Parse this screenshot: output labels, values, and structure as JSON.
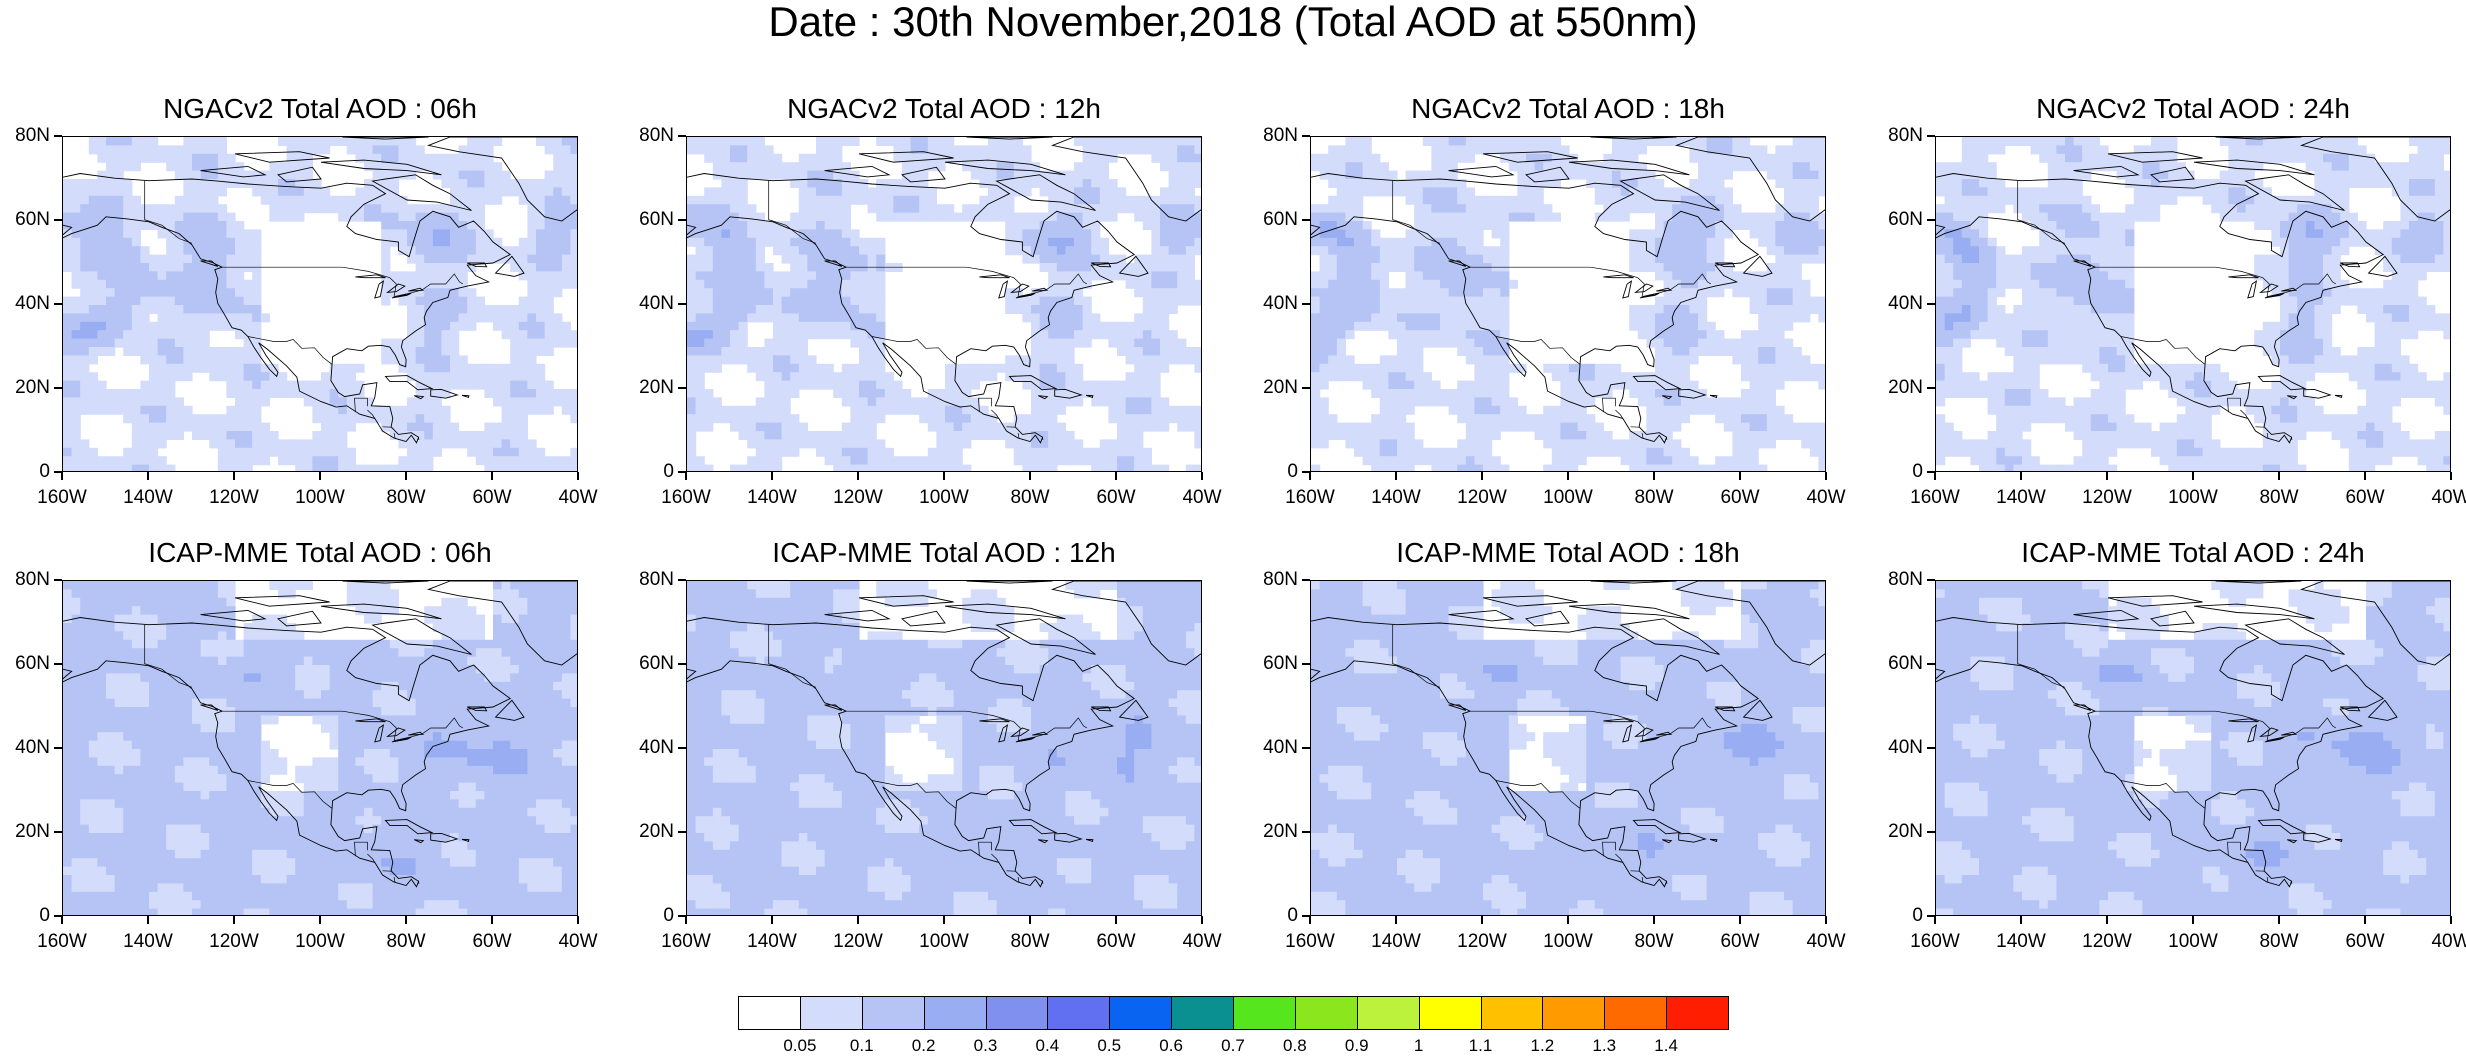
{
  "title": "Date : 30th November,2018 (Total AOD at 550nm)",
  "panels": [
    {
      "title": "NGACv2 Total AOD : 06h",
      "model": "NGACv2",
      "hour": "06h"
    },
    {
      "title": "NGACv2 Total AOD : 12h",
      "model": "NGACv2",
      "hour": "12h"
    },
    {
      "title": "NGACv2 Total AOD : 18h",
      "model": "NGACv2",
      "hour": "18h"
    },
    {
      "title": "NGACv2 Total AOD : 24h",
      "model": "NGACv2",
      "hour": "24h"
    },
    {
      "title": "ICAP-MME Total AOD : 06h",
      "model": "ICAP-MME",
      "hour": "06h"
    },
    {
      "title": "ICAP-MME Total AOD : 12h",
      "model": "ICAP-MME",
      "hour": "12h"
    },
    {
      "title": "ICAP-MME Total AOD : 18h",
      "model": "ICAP-MME",
      "hour": "18h"
    },
    {
      "title": "ICAP-MME Total AOD : 24h",
      "model": "ICAP-MME",
      "hour": "24h"
    }
  ],
  "lat_ticks": [
    "80N",
    "60N",
    "40N",
    "20N",
    "0"
  ],
  "lon_ticks": [
    "160W",
    "140W",
    "120W",
    "100W",
    "80W",
    "60W",
    "40W"
  ],
  "colorbar": {
    "levels": [
      "0.05",
      "0.1",
      "0.2",
      "0.3",
      "0.4",
      "0.5",
      "0.6",
      "0.7",
      "0.8",
      "0.9",
      "1",
      "1.1",
      "1.2",
      "1.3",
      "1.4"
    ],
    "colors": [
      "#ffffff",
      "#d3ddfb",
      "#b5c4f5",
      "#99aef2",
      "#7f90ee",
      "#6070f0",
      "#0a64f2",
      "#0a9090",
      "#55e61e",
      "#8ce61e",
      "#bdf23c",
      "#ffff00",
      "#ffc000",
      "#ff9a00",
      "#ff6a00",
      "#ff1e00"
    ]
  }
}
